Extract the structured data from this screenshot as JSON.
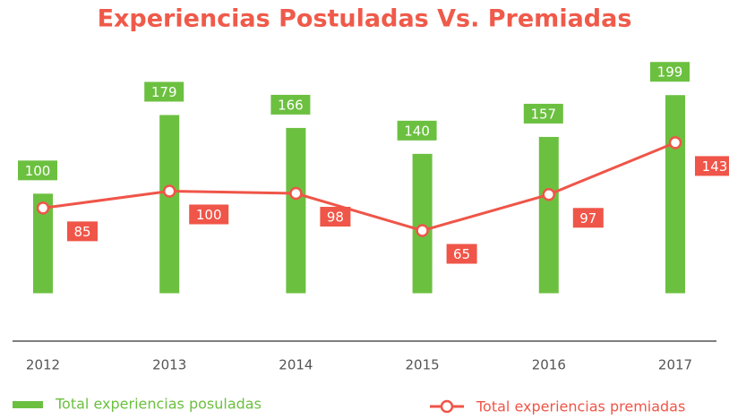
{
  "chart_data": {
    "type": "bar_line",
    "title": "Experiencias Postuladas Vs. Premiadas",
    "categories": [
      "2012",
      "2013",
      "2014",
      "2015",
      "2016",
      "2017"
    ],
    "series": [
      {
        "name": "Total experiencias posuladas",
        "type": "bar",
        "color": "#6cc040",
        "values": [
          100,
          179,
          166,
          140,
          157,
          199
        ]
      },
      {
        "name": "Total experiencias premiadas",
        "type": "line",
        "axis": "y2",
        "color": "#ef5548",
        "values": [
          85,
          100,
          98,
          65,
          97,
          143
        ]
      }
    ],
    "ylim": [
      -40,
      210
    ],
    "y2lim": [
      -26,
      195
    ],
    "grid": false,
    "legend": "bottom"
  }
}
